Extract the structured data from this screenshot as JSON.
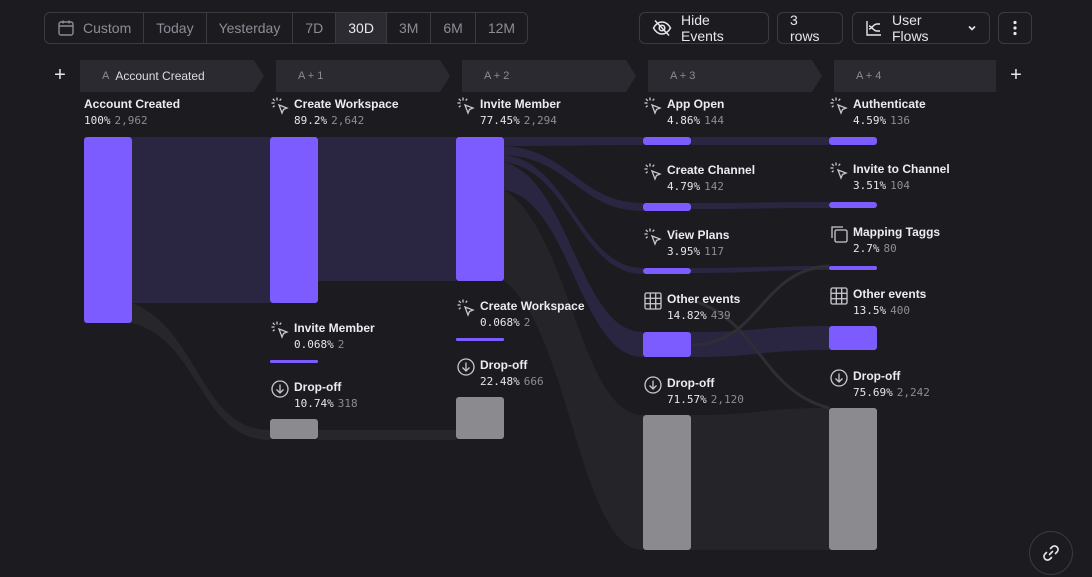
{
  "toolbar": {
    "date_ranges": [
      {
        "label": "Custom",
        "icon": "calendar-icon"
      },
      {
        "label": "Today"
      },
      {
        "label": "Yesterday"
      },
      {
        "label": "7D"
      },
      {
        "label": "30D",
        "active": true
      },
      {
        "label": "3M"
      },
      {
        "label": "6M"
      },
      {
        "label": "12M"
      }
    ],
    "hide_events_label": "Hide Events",
    "rows_label": "3 rows",
    "report_type_label": "User Flows"
  },
  "steps": [
    {
      "prefix": "A",
      "title": "Account Created"
    },
    {
      "prefix": "A + 1",
      "title": ""
    },
    {
      "prefix": "A + 2",
      "title": ""
    },
    {
      "prefix": "A + 3",
      "title": ""
    },
    {
      "prefix": "A + 4",
      "title": ""
    }
  ],
  "columns": [
    {
      "nodes": [
        {
          "name": "Account Created",
          "pct": "100%",
          "count": "2,962",
          "icon": "none",
          "color": "purple"
        }
      ]
    },
    {
      "nodes": [
        {
          "name": "Create Workspace",
          "pct": "89.2%",
          "count": "2,642",
          "icon": "click-icon",
          "color": "purple"
        },
        {
          "name": "Invite Member",
          "pct": "0.068%",
          "count": "2",
          "icon": "click-icon",
          "color": "purple"
        },
        {
          "name": "Drop-off",
          "pct": "10.74%",
          "count": "318",
          "icon": "dropoff-icon",
          "color": "gray"
        }
      ]
    },
    {
      "nodes": [
        {
          "name": "Invite Member",
          "pct": "77.45%",
          "count": "2,294",
          "icon": "click-icon",
          "color": "purple"
        },
        {
          "name": "Create Workspace",
          "pct": "0.068%",
          "count": "2",
          "icon": "click-icon",
          "color": "purple"
        },
        {
          "name": "Drop-off",
          "pct": "22.48%",
          "count": "666",
          "icon": "dropoff-icon",
          "color": "gray"
        }
      ]
    },
    {
      "nodes": [
        {
          "name": "App Open",
          "pct": "4.86%",
          "count": "144",
          "icon": "click-icon",
          "color": "purple"
        },
        {
          "name": "Create Channel",
          "pct": "4.79%",
          "count": "142",
          "icon": "click-icon",
          "color": "purple"
        },
        {
          "name": "View Plans",
          "pct": "3.95%",
          "count": "117",
          "icon": "click-icon",
          "color": "purple"
        },
        {
          "name": "Other events",
          "pct": "14.82%",
          "count": "439",
          "icon": "grid-icon",
          "color": "purple"
        },
        {
          "name": "Drop-off",
          "pct": "71.57%",
          "count": "2,120",
          "icon": "dropoff-icon",
          "color": "gray"
        }
      ]
    },
    {
      "nodes": [
        {
          "name": "Authenticate",
          "pct": "4.59%",
          "count": "136",
          "icon": "click-icon",
          "color": "purple"
        },
        {
          "name": "Invite to Channel",
          "pct": "3.51%",
          "count": "104",
          "icon": "click-icon",
          "color": "purple"
        },
        {
          "name": "Mapping Taggs",
          "pct": "2.7%",
          "count": "80",
          "icon": "copy-icon",
          "color": "purple"
        },
        {
          "name": "Other events",
          "pct": "13.5%",
          "count": "400",
          "icon": "grid-icon",
          "color": "purple"
        },
        {
          "name": "Drop-off",
          "pct": "75.69%",
          "count": "2,242",
          "icon": "dropoff-icon",
          "color": "gray"
        }
      ]
    }
  ],
  "colors": {
    "accent": "#7c5cff",
    "dropoff": "#8a8a8f",
    "flow": "#2a2540",
    "background": "#1c1c20"
  }
}
